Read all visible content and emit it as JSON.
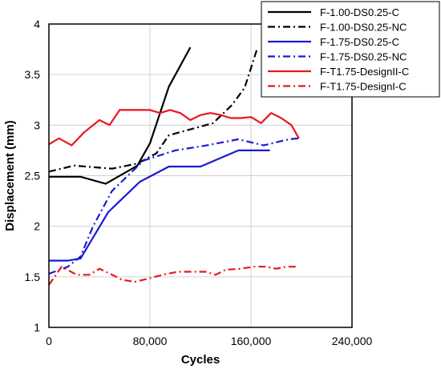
{
  "chart_data": {
    "type": "line",
    "title": "",
    "xlabel": "Cycles",
    "ylabel": "Displacement (mm)",
    "xlim": [
      0,
      240000
    ],
    "ylim": [
      1,
      4
    ],
    "grid": true,
    "legend_position": "top-right",
    "x_ticks": [
      {
        "value": 0,
        "label": "0"
      },
      {
        "value": 80000,
        "label": "80,000"
      },
      {
        "value": 160000,
        "label": "160,000"
      },
      {
        "value": 240000,
        "label": "240,000"
      }
    ],
    "y_ticks": [
      {
        "value": 1,
        "label": "1"
      },
      {
        "value": 1.5,
        "label": "1.5"
      },
      {
        "value": 2,
        "label": "2"
      },
      {
        "value": 2.5,
        "label": "2.5"
      },
      {
        "value": 3,
        "label": "3"
      },
      {
        "value": 3.5,
        "label": "3.5"
      },
      {
        "value": 4,
        "label": "4"
      }
    ],
    "series": [
      {
        "name": "F-1.00-DS0.25-C",
        "color": "#000000",
        "dash": "solid",
        "x": [
          0,
          25000,
          45000,
          70000,
          80000,
          95000,
          112000
        ],
        "y": [
          2.49,
          2.49,
          2.42,
          2.6,
          2.82,
          3.38,
          3.77
        ]
      },
      {
        "name": "F-1.00-DS0.25-NC",
        "color": "#000000",
        "dash": "dashdot",
        "x": [
          0,
          20000,
          50000,
          70000,
          85000,
          95000,
          130000,
          145000,
          155000,
          165000
        ],
        "y": [
          2.54,
          2.6,
          2.57,
          2.62,
          2.72,
          2.9,
          3.02,
          3.2,
          3.37,
          3.76
        ]
      },
      {
        "name": "F-1.75-DS0.25-C",
        "color": "#1a1ad6",
        "dash": "solid",
        "x": [
          0,
          15000,
          25000,
          47000,
          72000,
          95000,
          120000,
          150000,
          175000
        ],
        "y": [
          1.66,
          1.66,
          1.68,
          2.14,
          2.44,
          2.59,
          2.59,
          2.75,
          2.75
        ]
      },
      {
        "name": "F-1.75-DS0.25-NC",
        "color": "#1a1ad6",
        "dash": "dashdot",
        "x": [
          0,
          15000,
          25000,
          35000,
          50000,
          75000,
          100000,
          125000,
          150000,
          170000,
          190000,
          198000
        ],
        "y": [
          1.53,
          1.6,
          1.7,
          2.0,
          2.35,
          2.65,
          2.75,
          2.8,
          2.86,
          2.8,
          2.86,
          2.87
        ]
      },
      {
        "name": "F-T1.75-DesignII-C",
        "color": "#e8171d",
        "dash": "solid",
        "x": [
          0,
          8000,
          18000,
          28000,
          40000,
          48000,
          56000,
          64000,
          80000,
          88000,
          96000,
          104000,
          112000,
          120000,
          128000,
          136000,
          144000,
          152000,
          160000,
          168000,
          176000,
          184000,
          192000,
          198000
        ],
        "y": [
          2.81,
          2.87,
          2.8,
          2.93,
          3.05,
          3.0,
          3.15,
          3.15,
          3.15,
          3.12,
          3.15,
          3.12,
          3.05,
          3.1,
          3.12,
          3.1,
          3.07,
          3.07,
          3.08,
          3.02,
          3.12,
          3.07,
          3.0,
          2.87
        ]
      },
      {
        "name": "F-T1.75-DesignI-C",
        "color": "#e8171d",
        "dash": "dashdot",
        "x": [
          0,
          10000,
          22000,
          32000,
          40000,
          50000,
          58000,
          68000,
          78000,
          90000,
          102000,
          114000,
          124000,
          132000,
          140000,
          152000,
          162000,
          172000,
          180000,
          188000,
          198000
        ],
        "y": [
          1.42,
          1.6,
          1.52,
          1.52,
          1.58,
          1.52,
          1.47,
          1.45,
          1.48,
          1.52,
          1.55,
          1.55,
          1.55,
          1.52,
          1.57,
          1.58,
          1.6,
          1.6,
          1.58,
          1.6,
          1.6
        ]
      }
    ]
  }
}
